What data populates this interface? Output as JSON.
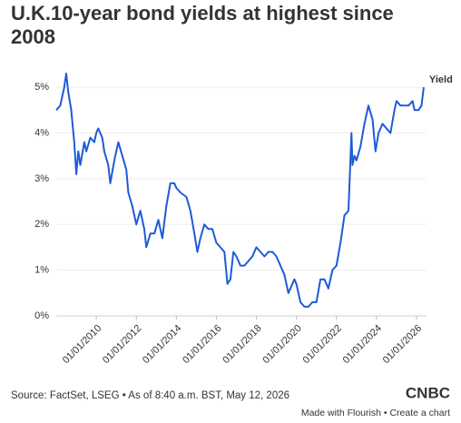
{
  "chart_data": {
    "type": "line",
    "title": "U.K.10-year bond yields at highest since 2008",
    "source": "Source: FactSet, LSEG • As of 8:40 a.m. BST, May 12, 2026",
    "footer": "Made with Flourish • Create a chart",
    "logo": "CNBC",
    "x": [
      2008.0,
      2008.2,
      2008.4,
      2008.5,
      2008.6,
      2008.75,
      2008.9,
      2009.0,
      2009.1,
      2009.2,
      2009.4,
      2009.5,
      2009.7,
      2009.9,
      2010.0,
      2010.1,
      2010.3,
      2010.4,
      2010.6,
      2010.7,
      2010.9,
      2011.0,
      2011.1,
      2011.3,
      2011.5,
      2011.6,
      2011.8,
      2012.0,
      2012.2,
      2012.4,
      2012.5,
      2012.7,
      2012.9,
      2013.1,
      2013.3,
      2013.5,
      2013.7,
      2013.9,
      2014.0,
      2014.2,
      2014.5,
      2014.7,
      2014.9,
      2015.05,
      2015.2,
      2015.4,
      2015.6,
      2015.8,
      2016.0,
      2016.2,
      2016.4,
      2016.55,
      2016.7,
      2016.85,
      2017.0,
      2017.2,
      2017.4,
      2017.6,
      2017.8,
      2018.0,
      2018.2,
      2018.4,
      2018.6,
      2018.8,
      2019.0,
      2019.2,
      2019.4,
      2019.6,
      2019.7,
      2019.9,
      2020.0,
      2020.2,
      2020.4,
      2020.6,
      2020.8,
      2021.0,
      2021.2,
      2021.4,
      2021.6,
      2021.8,
      2022.0,
      2022.2,
      2022.4,
      2022.6,
      2022.75,
      2022.8,
      2022.9,
      2023.0,
      2023.2,
      2023.4,
      2023.6,
      2023.8,
      2023.95,
      2024.1,
      2024.3,
      2024.5,
      2024.7,
      2024.9,
      2025.0,
      2025.2,
      2025.4,
      2025.6,
      2025.8,
      2025.9,
      2026.1,
      2026.25,
      2026.36
    ],
    "series": [
      {
        "name": "Yield",
        "color": "#1e5bd6",
        "values": [
          4.5,
          4.6,
          5.0,
          5.3,
          4.9,
          4.5,
          3.8,
          3.1,
          3.6,
          3.3,
          3.8,
          3.6,
          3.9,
          3.8,
          4.0,
          4.1,
          3.9,
          3.6,
          3.3,
          2.9,
          3.4,
          3.6,
          3.8,
          3.5,
          3.2,
          2.7,
          2.4,
          2.0,
          2.3,
          1.9,
          1.5,
          1.8,
          1.8,
          2.1,
          1.7,
          2.4,
          2.9,
          2.9,
          2.8,
          2.7,
          2.6,
          2.3,
          1.8,
          1.4,
          1.7,
          2.0,
          1.9,
          1.9,
          1.6,
          1.5,
          1.4,
          0.7,
          0.8,
          1.4,
          1.3,
          1.1,
          1.1,
          1.2,
          1.3,
          1.5,
          1.4,
          1.3,
          1.4,
          1.4,
          1.3,
          1.1,
          0.9,
          0.5,
          0.6,
          0.8,
          0.7,
          0.3,
          0.2,
          0.2,
          0.3,
          0.3,
          0.8,
          0.8,
          0.6,
          1.0,
          1.1,
          1.6,
          2.2,
          2.3,
          4.0,
          3.3,
          3.5,
          3.4,
          3.7,
          4.2,
          4.6,
          4.3,
          3.6,
          4.0,
          4.2,
          4.1,
          4.0,
          4.5,
          4.7,
          4.6,
          4.6,
          4.6,
          4.7,
          4.5,
          4.5,
          4.6,
          5.0
        ]
      }
    ],
    "xlim": [
      2008.0,
      2026.5
    ],
    "xticks": [
      {
        "value": 2010,
        "label": "01/01/2010"
      },
      {
        "value": 2012,
        "label": "01/01/2012"
      },
      {
        "value": 2014,
        "label": "01/01/2014"
      },
      {
        "value": 2016,
        "label": "01/01/2016"
      },
      {
        "value": 2018,
        "label": "01/01/2018"
      },
      {
        "value": 2020,
        "label": "01/01/2020"
      },
      {
        "value": 2022,
        "label": "01/01/2022"
      },
      {
        "value": 2024,
        "label": "01/01/2024"
      },
      {
        "value": 2026,
        "label": "01/01/2026"
      }
    ],
    "ylim": [
      0,
      5.4
    ],
    "yticks": [
      {
        "value": 0,
        "label": "0%"
      },
      {
        "value": 1,
        "label": "1%"
      },
      {
        "value": 2,
        "label": "2%"
      },
      {
        "value": 3,
        "label": "3%"
      },
      {
        "value": 4,
        "label": "4%"
      },
      {
        "value": 5,
        "label": "5%"
      }
    ],
    "grid": true
  }
}
